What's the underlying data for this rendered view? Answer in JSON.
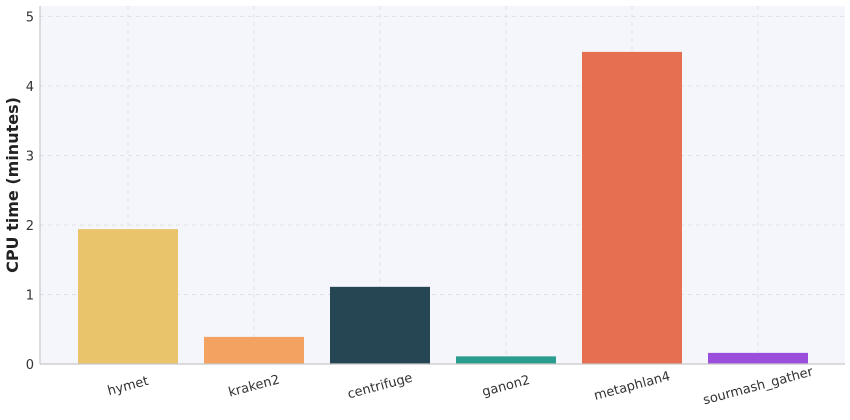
{
  "chart_data": {
    "type": "bar",
    "title": "",
    "xlabel": "",
    "ylabel": "CPU time (minutes)",
    "categories": [
      "hymet",
      "kraken2",
      "centrifuge",
      "ganon2",
      "metaphlan4",
      "sourmash_gather"
    ],
    "values": [
      1.94,
      0.39,
      1.11,
      0.11,
      4.49,
      0.16
    ],
    "colors": [
      "#e9c46a",
      "#f4a261",
      "#264653",
      "#2a9d8f",
      "#e76f51",
      "#9b4ddb"
    ],
    "ylim": [
      0,
      5.15
    ],
    "yticks": [
      0,
      1,
      2,
      3,
      4,
      5
    ],
    "grid": true,
    "legend": "none",
    "background": "#f4f6fb"
  }
}
